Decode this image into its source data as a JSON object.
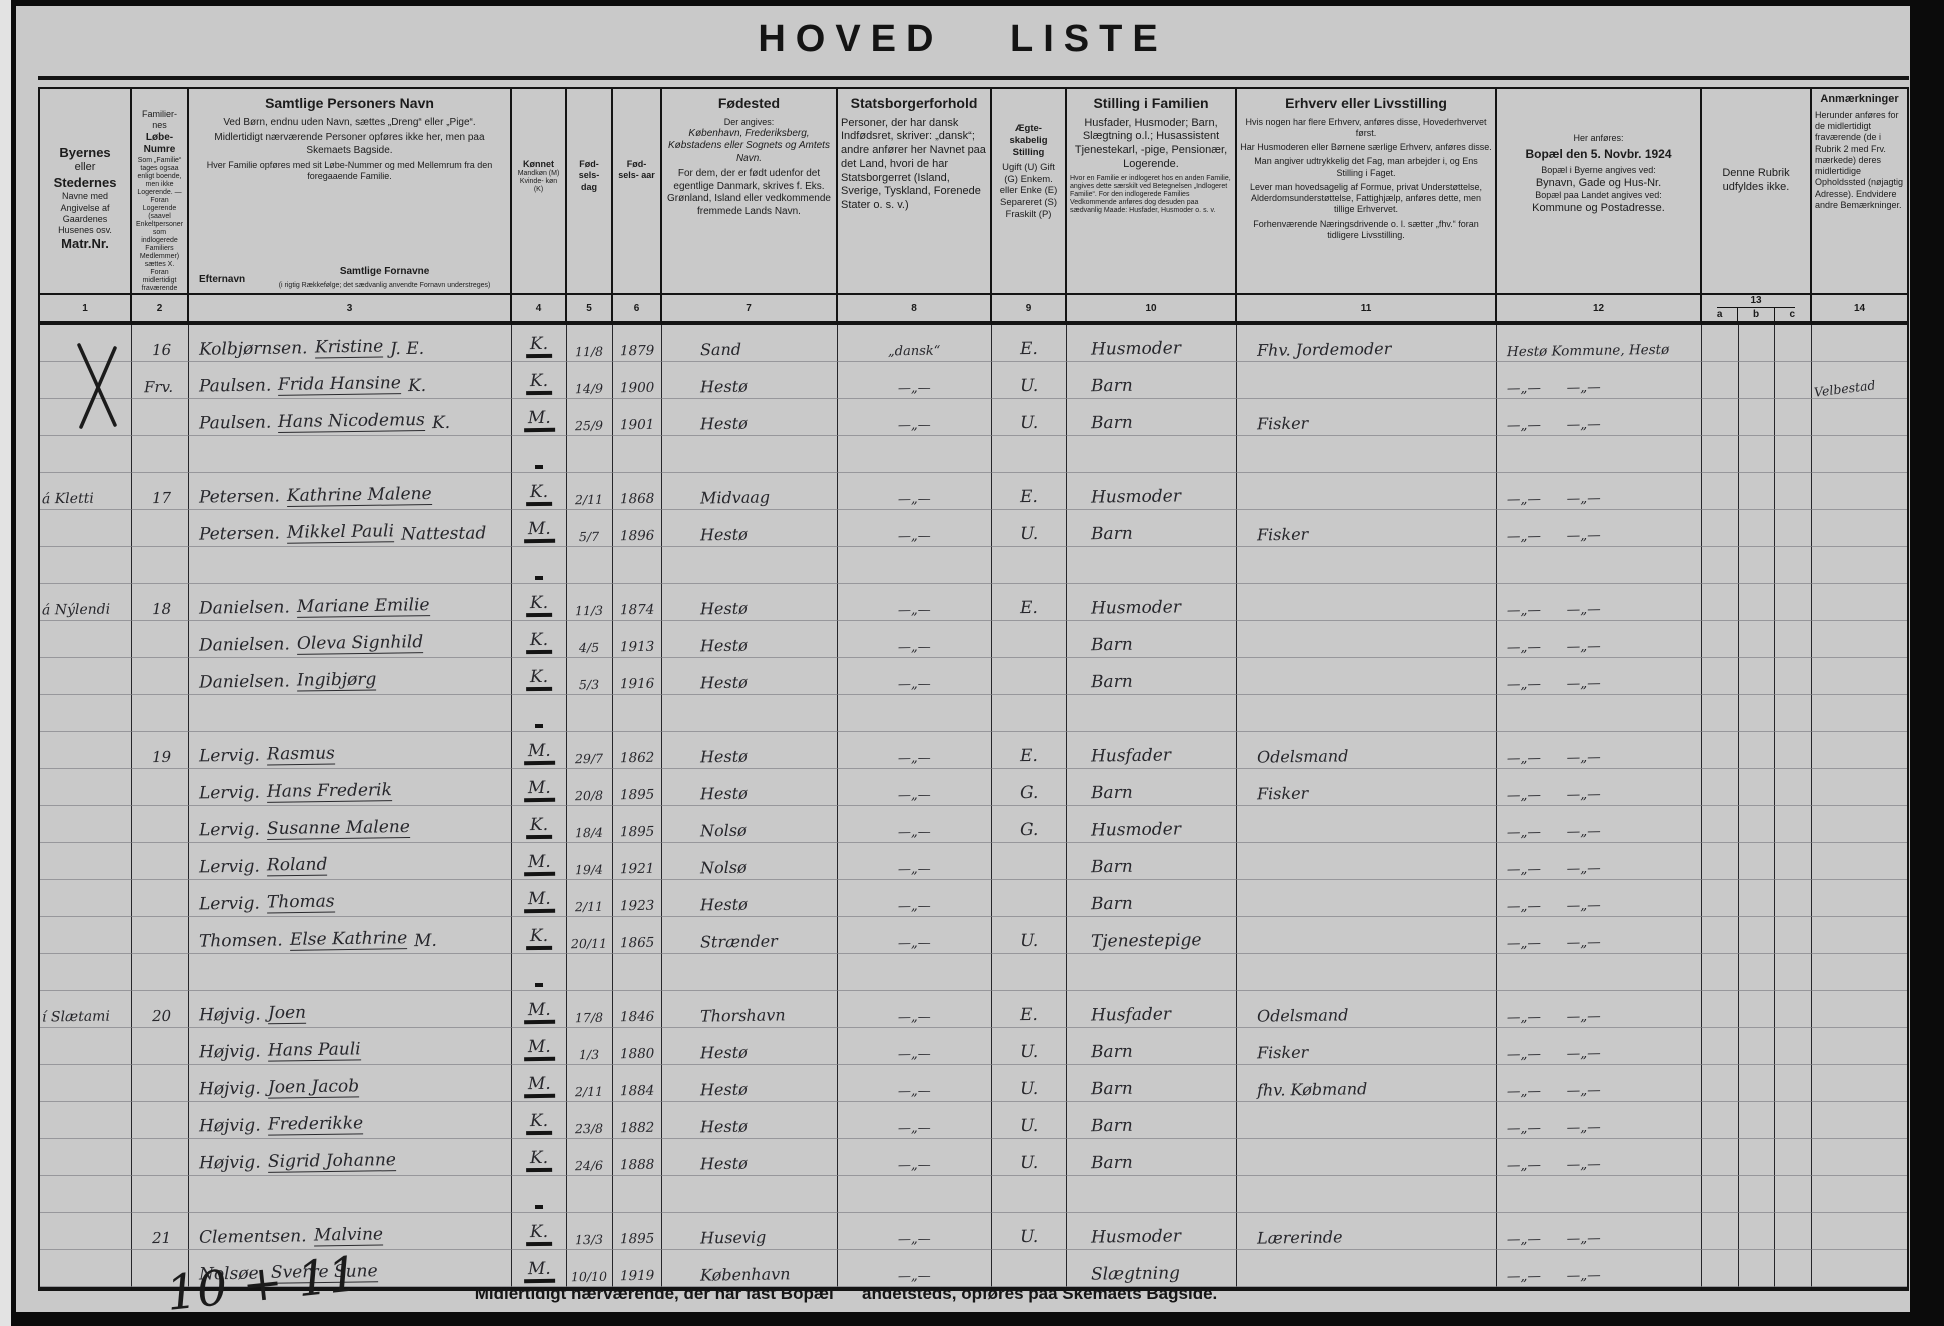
{
  "title": "HOVED LISTE",
  "header": {
    "col1": {
      "t1": "Byernes",
      "t2": "eller",
      "t3": "Stedernes",
      "b1": "Navne med",
      "b2": "Angivelse af",
      "b3": "Gaardenes",
      "b4": "Husenes osv.",
      "b5": "Matr.Nr."
    },
    "col2": {
      "t1": "Familier-",
      "t2": "nes",
      "t3": "Løbe-",
      "t4": "Numre",
      "fine": "Som „Familie“ tages ogsaa enligt boende, men ikke Logerende. — Foran Logerende (saavel Enkeltpersoner som indlogerede Familiers Medlemmer) sættes X. Foran midlertidigt fraværende sættes Frv. (jfr. Rubr. 14)"
    },
    "col3": {
      "title": "Samtlige Personers Navn",
      "p1": "Ved Børn, endnu uden Navn, sættes „Dreng“ eller „Pige“.",
      "p2": "Midlertidigt nærværende Personer opføres ikke her, men paa Skemaets Bagside.",
      "p3": "Hver Familie opføres med sit Løbe-Nummer og med Mellemrum fra den foregaaende Familie.",
      "sub_left": "Efternavn",
      "sub_right_title": "Samtlige Fornavne",
      "sub_right_note": "(i rigtig Rækkefølge; det sædvanlig anvendte Fornavn understreges)"
    },
    "col4": {
      "title": "Kønnet",
      "body": "Mandkøn (M) Kvinde- køn (K)"
    },
    "col5": {
      "title": "Fød- sels- dag"
    },
    "col6": {
      "title": "Fød- sels- aar"
    },
    "col7": {
      "title": "Fødested",
      "small": "Der angives:",
      "italic": "København, Frederiksberg, Købstadens eller Sognets og Amtets Navn.",
      "body": "For dem, der er født udenfor det egentlige Danmark, skrives f. Eks. Grønland, Island eller vedkommende fremmede Lands Navn."
    },
    "col8": {
      "title": "Statsborgerforhold",
      "body": "Personer, der har dansk Indfødsret, skriver: „dansk“; andre anfører her Navnet paa det Land, hvori de har Statsborgerret (Island, Sverige, Tyskland, Forenede Stater o. s. v.)"
    },
    "col9": {
      "title": "Ægte- skabelig Stilling",
      "body": "Ugift (U) Gift (G) Enkem. eller Enke (E) Separeret (S) Fraskilt (P)"
    },
    "col10": {
      "title": "Stilling i Familien",
      "body": "Husfader, Husmoder; Barn, Slægtning o.l.; Husassistent Tjenestekarl, -pige, Pensionær, Logerende.",
      "fine": "Hvor en Familie er indlogeret hos en anden Familie, angives dette særskilt ved Betegnelsen „Indlogeret Familie“. For den indlogerede Families Vedkommende anføres dog desuden paa sædvanlig Maade: Husfader, Husmoder o. s. v."
    },
    "col11": {
      "title": "Erhverv eller Livsstilling",
      "p1": "Hvis nogen har flere Erhverv, anføres disse, Hovederhvervet først.",
      "p2": "Har Husmoderen eller Børnene særlige Erhverv, anføres disse.",
      "p3": "Man angiver udtrykkelig det Fag, man arbejder i, og Ens Stilling i Faget.",
      "p4": "Lever man hovedsagelig af Formue, privat Understøttelse, Alderdomsunderstøttelse, Fattighjælp, anføres dette, men tillige Erhvervet.",
      "p5": "Forhenværende Næringsdrivende o. l. sætter „fhv.“ foran tidligere Livsstilling."
    },
    "col12": {
      "small": "Her anføres:",
      "title": "Bopæl den 5. Novbr. 1924",
      "s1": "Bopæl i Byerne angives ved:",
      "b1": "Bynavn, Gade og Hus-Nr.",
      "s2": "Bopæl paa Landet angives ved:",
      "b2": "Kommune og Postadresse."
    },
    "col13": {
      "body": "Denne Rubrik udfyldes ikke.",
      "num": "13",
      "sub": [
        "a",
        "b",
        "c"
      ]
    },
    "col14": {
      "title": "Anmærkninger",
      "body": "Herunder anføres for de midlertidigt fraværende (de i Rubrik 2 med Frv. mærkede) deres midlertidige Opholdssted (nøjagtig Adresse). Endvidere andre Bemærkninger."
    },
    "col_numbers": [
      "1",
      "2",
      "3",
      "4",
      "5",
      "6",
      "7",
      "8",
      "9",
      "10",
      "11",
      "12",
      "14"
    ]
  },
  "rows": [
    {
      "x": true,
      "n": "16",
      "s": "Kolbjørnsen.",
      "g": "Kristine",
      "e": "J. E.",
      "sx": "K.",
      "d": "11/8",
      "y": "1879",
      "b": "Sand",
      "c": "„dansk“",
      "ma": "E.",
      "po": "Husmoder",
      "oc": "Fhv. Jordemoder",
      "re": "Hestø Kommune, Hestø"
    },
    {
      "p": "Frv.",
      "s": "Paulsen.",
      "g": "Frida Hansine",
      "e": "K.",
      "sx": "K.",
      "d": "14/9",
      "y": "1900",
      "b": "Hestø",
      "c": "—„—",
      "ma": "U.",
      "po": "Barn",
      "re": "—„—      —„—",
      "rm": "Velbestad"
    },
    {
      "s": "Paulsen.",
      "g": "Hans Nicodemus",
      "e": "K.",
      "sx": "M.",
      "d": "25/9",
      "y": "1901",
      "b": "Hestø",
      "c": "—„—",
      "ma": "U.",
      "po": "Barn",
      "oc": "Fisker",
      "re": "—„—      —„—"
    },
    {},
    {
      "m": "á Kletti",
      "n": "17",
      "s": "Petersen.",
      "g": "Kathrine Malene",
      "sx": "K.",
      "d": "2/11",
      "y": "1868",
      "b": "Midvaag",
      "c": "—„—",
      "ma": "E.",
      "po": "Husmoder",
      "re": "—„—      —„—"
    },
    {
      "s": "Petersen.",
      "g": "Mikkel Pauli",
      "e": "Nattestad",
      "sx": "M.",
      "d": "5/7",
      "y": "1896",
      "b": "Hestø",
      "c": "—„—",
      "ma": "U.",
      "po": "Barn",
      "oc": "Fisker",
      "re": "—„—      —„—"
    },
    {},
    {
      "m": "á Nýlendi",
      "n": "18",
      "s": "Danielsen.",
      "g": "Mariane Emilie",
      "sx": "K.",
      "d": "11/3",
      "y": "1874",
      "b": "Hestø",
      "c": "—„—",
      "ma": "E.",
      "po": "Husmoder",
      "re": "—„—      —„—"
    },
    {
      "s": "Danielsen.",
      "g": "Oleva Signhild",
      "sx": "K.",
      "d": "4/5",
      "y": "1913",
      "b": "Hestø",
      "c": "—„—",
      "po": "Barn",
      "re": "—„—      —„—"
    },
    {
      "s": "Danielsen.",
      "g": "Ingibjørg",
      "sx": "K.",
      "d": "5/3",
      "y": "1916",
      "b": "Hestø",
      "c": "—„—",
      "po": "Barn",
      "re": "—„—      —„—"
    },
    {},
    {
      "n": "19",
      "s": "Lervig.",
      "g": "Rasmus",
      "sx": "M.",
      "d": "29/7",
      "y": "1862",
      "b": "Hestø",
      "c": "—„—",
      "ma": "E.",
      "po": "Husfader",
      "oc": "Odelsmand",
      "re": "—„—      —„—"
    },
    {
      "s": "Lervig.",
      "g": "Hans Frederik",
      "sx": "M.",
      "d": "20/8",
      "y": "1895",
      "b": "Hestø",
      "c": "—„—",
      "ma": "G.",
      "po": "Barn",
      "oc": "Fisker",
      "re": "—„—      —„—"
    },
    {
      "s": "Lervig.",
      "g": "Susanne Malene",
      "sx": "K.",
      "d": "18/4",
      "y": "1895",
      "b": "Nolsø",
      "c": "—„—",
      "ma": "G.",
      "po": "Husmoder",
      "re": "—„—      —„—"
    },
    {
      "s": "Lervig.",
      "g": "Roland",
      "sx": "M.",
      "d": "19/4",
      "y": "1921",
      "b": "Nolsø",
      "c": "—„—",
      "po": "Barn",
      "re": "—„—      —„—"
    },
    {
      "s": "Lervig.",
      "g": "Thomas",
      "sx": "M.",
      "d": "2/11",
      "y": "1923",
      "b": "Hestø",
      "c": "—„—",
      "po": "Barn",
      "re": "—„—      —„—"
    },
    {
      "s": "Thomsen.",
      "g": "Else Kathrine",
      "e": "M.",
      "sx": "K.",
      "d": "20/11",
      "y": "1865",
      "b": "Strænder",
      "c": "—„—",
      "ma": "U.",
      "po": "Tjenestepige",
      "re": "—„—      —„—"
    },
    {},
    {
      "m": "í Slætami",
      "n": "20",
      "s": "Højvig.",
      "g": "Joen",
      "sx": "M.",
      "d": "17/8",
      "y": "1846",
      "b": "Thorshavn",
      "c": "—„—",
      "ma": "E.",
      "po": "Husfader",
      "oc": "Odelsmand",
      "re": "—„—      —„—"
    },
    {
      "s": "Højvig.",
      "g": "Hans Pauli",
      "sx": "M.",
      "d": "1/3",
      "y": "1880",
      "b": "Hestø",
      "c": "—„—",
      "ma": "U.",
      "po": "Barn",
      "oc": "Fisker",
      "re": "—„—      —„—"
    },
    {
      "s": "Højvig.",
      "g": "Joen Jacob",
      "sx": "M.",
      "d": "2/11",
      "y": "1884",
      "b": "Hestø",
      "c": "—„—",
      "ma": "U.",
      "po": "Barn",
      "oc": "fhv. Købmand",
      "re": "—„—      —„—"
    },
    {
      "s": "Højvig.",
      "g": "Frederikke",
      "sx": "K.",
      "d": "23/8",
      "y": "1882",
      "b": "Hestø",
      "c": "—„—",
      "ma": "U.",
      "po": "Barn",
      "re": "—„—      —„—"
    },
    {
      "s": "Højvig.",
      "g": "Sigrid Johanne",
      "sx": "K.",
      "d": "24/6",
      "y": "1888",
      "b": "Hestø",
      "c": "—„—",
      "ma": "U.",
      "po": "Barn",
      "re": "—„—      —„—"
    },
    {},
    {
      "n": "21",
      "s": "Clementsen.",
      "g": "Malvine",
      "sx": "K.",
      "d": "13/3",
      "y": "1895",
      "b": "Husevig",
      "c": "—„—",
      "ma": "U.",
      "po": "Husmoder",
      "oc": "Lærerinde",
      "re": "—„—      —„—"
    },
    {
      "s": "Nolsøe.",
      "g": "Sverre Sune",
      "sx": "M.",
      "d": "10/10",
      "y": "1919",
      "b": "København",
      "c": "—„—",
      "po": "Slægtning",
      "re": "—„—      —„—"
    }
  ],
  "footer": {
    "text": "Midlertidigt nærværende, der har fast Bopæl      andetsteds, opføres paa Skemaets Bagside.",
    "note": "10 + 11"
  }
}
